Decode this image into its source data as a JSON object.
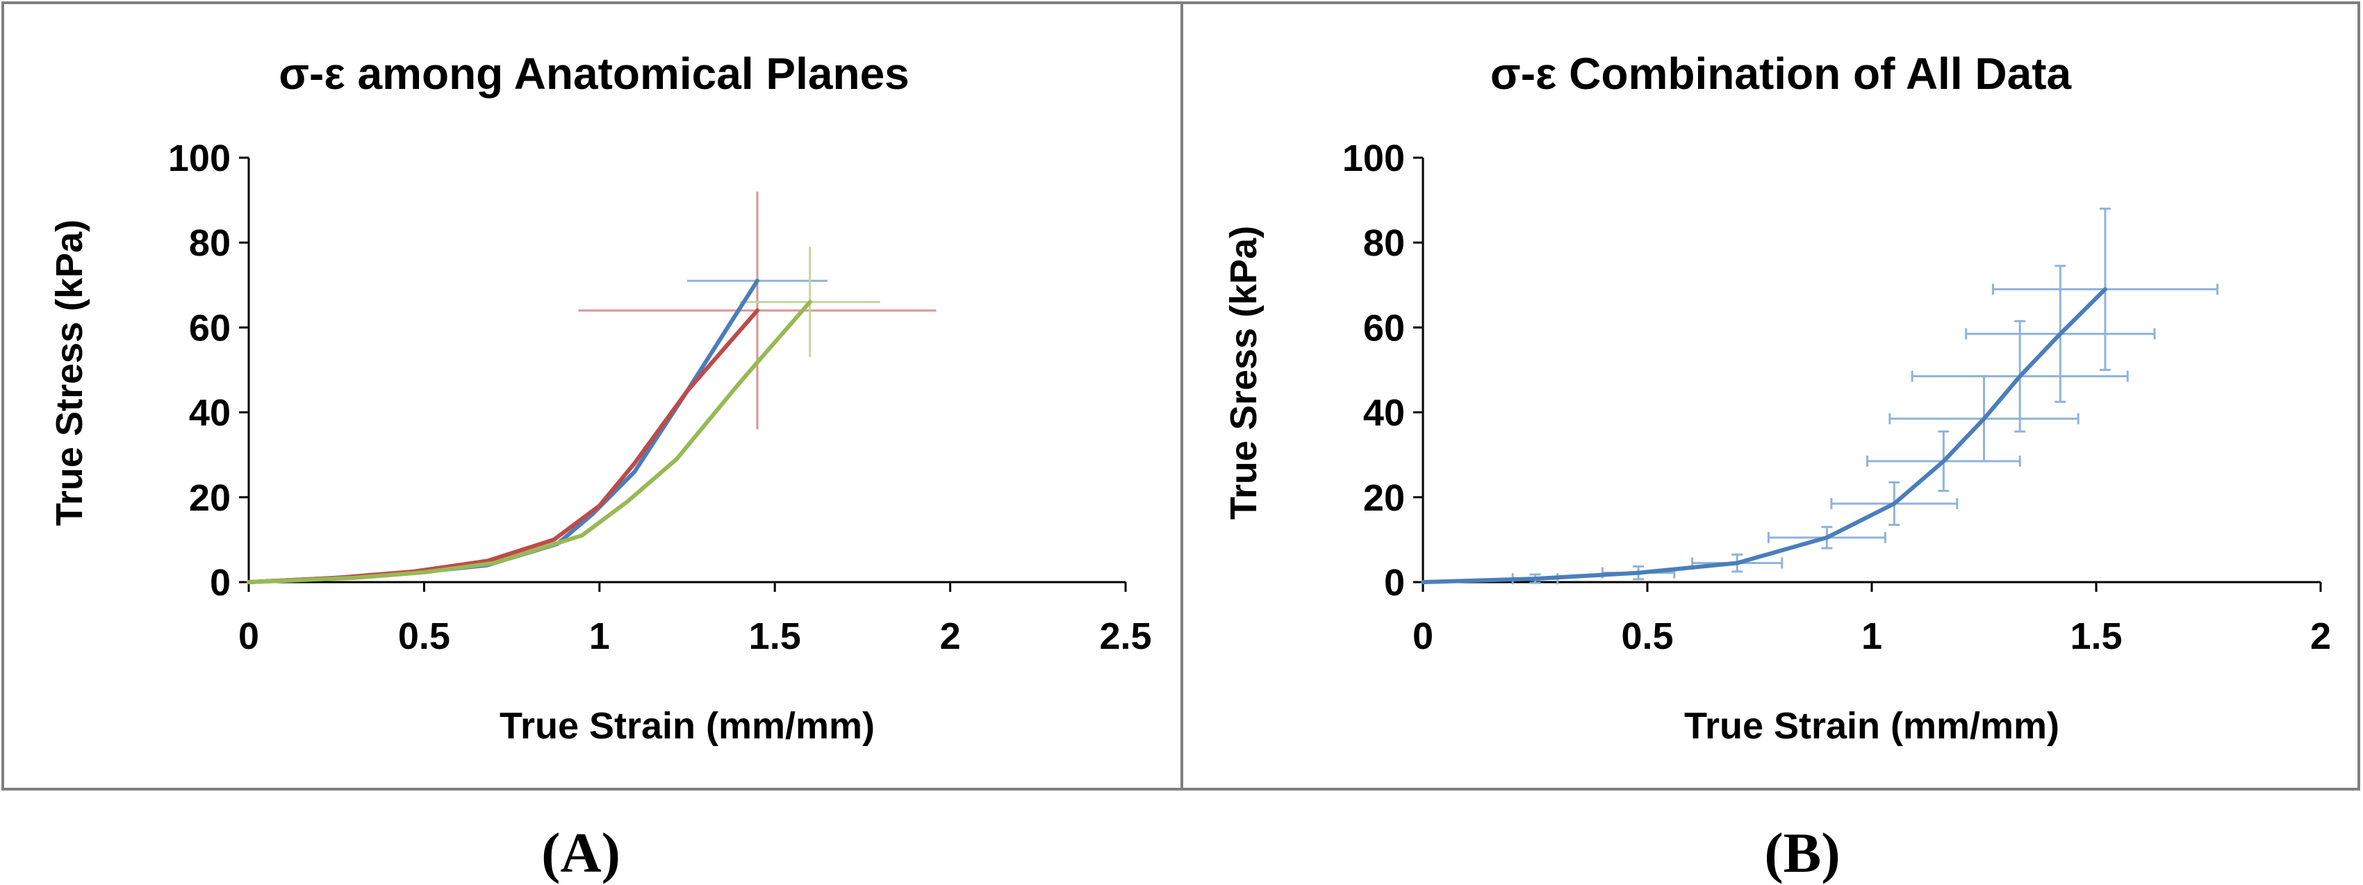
{
  "panels": [
    {
      "label": "(A)"
    },
    {
      "label": "(B)"
    }
  ],
  "colors": {
    "blue": "#4a7ebb",
    "red": "#be4b48",
    "green": "#98b954",
    "light_blue": "#8fb3dc",
    "light_red": "#d99694",
    "light_green": "#c3d69b",
    "frame": "#7f7f7f",
    "axis": "#000000"
  },
  "chart_data": [
    {
      "type": "line",
      "title": "σ-ε among Anatomical Planes",
      "xlabel": "True Strain (mm/mm)",
      "ylabel": "True Stress (kPa)",
      "xlim": [
        0,
        2.5
      ],
      "ylim": [
        0,
        100
      ],
      "xticks": [
        "0",
        "0.5",
        "1",
        "1.5",
        "2",
        "2.5"
      ],
      "yticks": [
        "0",
        "20",
        "40",
        "60",
        "80",
        "100"
      ],
      "grid": false,
      "legend": "none",
      "series": [
        {
          "color": "blue",
          "x": [
            0,
            0.2,
            0.45,
            0.68,
            0.88,
            0.98,
            1.1,
            1.25,
            1.45
          ],
          "y": [
            0,
            0.8,
            2,
            4,
            9,
            16,
            26,
            45,
            71
          ]
        },
        {
          "color": "red",
          "x": [
            0,
            0.25,
            0.47,
            0.68,
            0.87,
            1.0,
            1.1,
            1.25,
            1.45
          ],
          "y": [
            0,
            1,
            2.5,
            5,
            10,
            18,
            28,
            45,
            64
          ]
        },
        {
          "color": "green",
          "x": [
            0,
            0.3,
            0.5,
            0.7,
            0.95,
            1.08,
            1.22,
            1.4,
            1.6
          ],
          "y": [
            0,
            1,
            2.3,
            4.5,
            11,
            19,
            29,
            47,
            66
          ]
        }
      ],
      "error_bars": [
        {
          "color": "light_blue",
          "x": 1.45,
          "y": 71,
          "x_err": [
            0.2,
            0.2
          ],
          "y_err": [
            14,
            14
          ]
        },
        {
          "color": "light_red",
          "x": 1.45,
          "y": 64,
          "x_err": [
            0.51,
            0.51
          ],
          "y_err": [
            28,
            28
          ]
        },
        {
          "color": "light_green",
          "x": 1.6,
          "y": 66,
          "x_err": [
            0.2,
            0.2
          ],
          "y_err": [
            13,
            13
          ]
        }
      ]
    },
    {
      "type": "line",
      "title": "σ-ε Combination of All Data",
      "xlabel": "True Strain (mm/mm)",
      "ylabel": "True Sress (kPa)",
      "xlim": [
        0,
        2
      ],
      "ylim": [
        0,
        100
      ],
      "xticks": [
        "0",
        "0.5",
        "1",
        "1.5",
        "2"
      ],
      "yticks": [
        "0",
        "20",
        "40",
        "60",
        "80",
        "100"
      ],
      "grid": false,
      "legend": "none",
      "series": [
        {
          "color": "blue",
          "x": [
            0,
            0.25,
            0.48,
            0.7,
            0.9,
            1.05,
            1.16,
            1.25,
            1.33,
            1.42,
            1.52
          ],
          "y": [
            0,
            0.8,
            2.2,
            4.5,
            10.5,
            18.5,
            28.5,
            38.5,
            48.5,
            58.5,
            69
          ],
          "x_err": [
            0,
            0.05,
            0.08,
            0.1,
            0.13,
            0.14,
            0.17,
            0.21,
            0.24,
            0.21,
            0.25
          ],
          "y_err": [
            0,
            1,
            1.5,
            2,
            2.5,
            5,
            7,
            10,
            13,
            16,
            19
          ]
        }
      ]
    }
  ]
}
